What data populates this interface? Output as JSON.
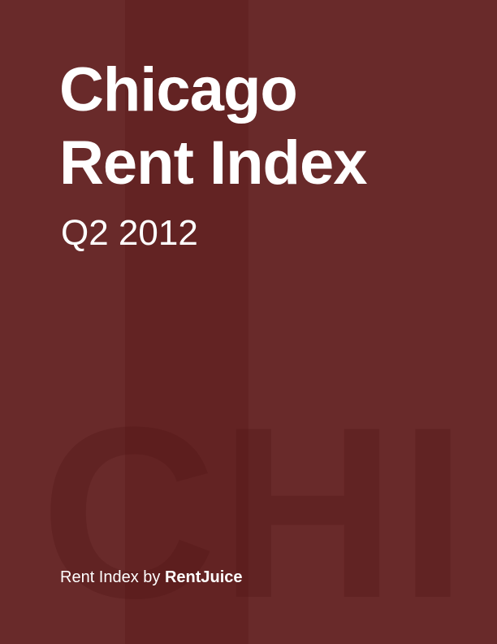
{
  "cover": {
    "title_line1": "Chicago",
    "title_line2": "Rent Index",
    "subtitle": "Q2 2012",
    "watermark": "CHI",
    "footer_prefix": "Rent Index by ",
    "footer_brand": "RentJuice"
  },
  "colors": {
    "background": "#692a2a",
    "band": "#632323",
    "text": "#ffffff"
  }
}
